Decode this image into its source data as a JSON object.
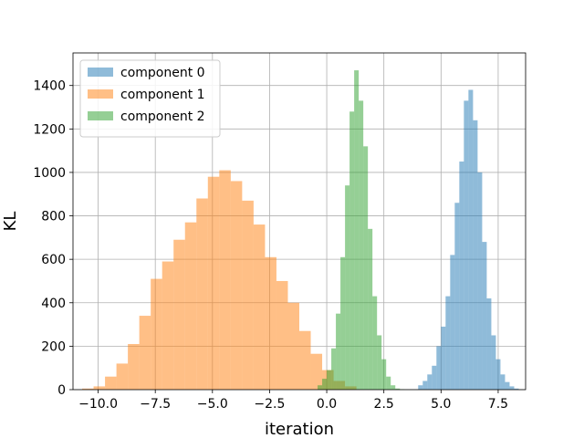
{
  "chart_data": {
    "type": "histogram",
    "title": "",
    "xlabel": "iteration",
    "ylabel": "KL",
    "xlim": [
      -11.1,
      8.7
    ],
    "ylim": [
      0,
      1550
    ],
    "x_ticks": [
      -10.0,
      -7.5,
      -5.0,
      -2.5,
      0.0,
      2.5,
      5.0,
      7.5
    ],
    "x_tick_labels": [
      "−10.0",
      "−7.5",
      "−5.0",
      "−2.5",
      "0.0",
      "2.5",
      "5.0",
      "7.5"
    ],
    "y_ticks": [
      0,
      200,
      400,
      600,
      800,
      1000,
      1200,
      1400
    ],
    "y_tick_labels": [
      "0",
      "200",
      "400",
      "600",
      "800",
      "1000",
      "1200",
      "1400"
    ],
    "grid": true,
    "legend_position": "upper left",
    "series": [
      {
        "name": "component 0",
        "color": "#1f77b4",
        "alpha": 0.5,
        "bin_start": 4.0,
        "bin_width": 0.2,
        "counts": [
          20,
          40,
          70,
          110,
          200,
          290,
          430,
          620,
          860,
          1050,
          1330,
          1380,
          1240,
          1000,
          680,
          420,
          250,
          140,
          70,
          35,
          15,
          5
        ]
      },
      {
        "name": "component 1",
        "color": "#ff7f0e",
        "alpha": 0.5,
        "bin_start": -10.7,
        "bin_width": 0.5,
        "counts": [
          5,
          15,
          60,
          120,
          210,
          340,
          510,
          590,
          690,
          770,
          880,
          980,
          1010,
          960,
          870,
          760,
          610,
          500,
          400,
          270,
          165,
          90,
          40,
          15
        ]
      },
      {
        "name": "component 2",
        "color": "#2ca02c",
        "alpha": 0.5,
        "bin_start": -0.4,
        "bin_width": 0.2,
        "counts": [
          20,
          50,
          90,
          190,
          350,
          610,
          940,
          1280,
          1470,
          1330,
          1120,
          740,
          430,
          250,
          140,
          60,
          20,
          5,
          2
        ]
      }
    ]
  }
}
